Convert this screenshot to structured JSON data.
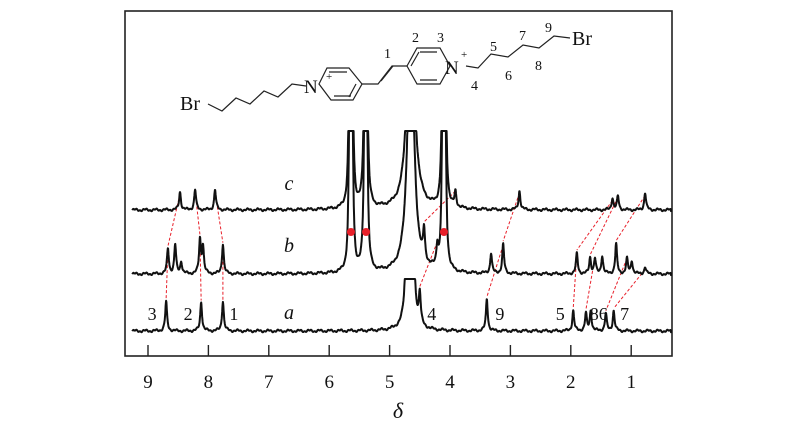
{
  "chart_data": {
    "type": "line",
    "xlabel": "δ",
    "ylabel": "",
    "xlim": [
      9.36,
      0.32
    ],
    "x_reversed": true,
    "x_ticks": [
      9,
      8,
      7,
      6,
      5,
      4,
      3,
      2,
      1
    ],
    "x_tick_labels": [
      "9",
      "8",
      "7",
      "6",
      "5",
      "4",
      "3",
      "2",
      "1"
    ],
    "grid": false,
    "series": [
      {
        "label": "c",
        "peaks": [
          {
            "delta": 8.47,
            "intensity": 0.6
          },
          {
            "delta": 8.22,
            "intensity": 0.67
          },
          {
            "delta": 7.89,
            "intensity": 0.67
          },
          {
            "delta": 5.66,
            "intensity": 6
          },
          {
            "delta": 5.62,
            "intensity": 6
          },
          {
            "delta": 5.41,
            "intensity": 6
          },
          {
            "delta": 5.38,
            "intensity": 6
          },
          {
            "delta": 4.65,
            "intensity": 9,
            "broad": true
          },
          {
            "delta": 4.12,
            "intensity": 6
          },
          {
            "delta": 4.08,
            "intensity": 6
          },
          {
            "delta": 3.91,
            "intensity": 0.5
          },
          {
            "delta": 2.85,
            "intensity": 0.63
          },
          {
            "delta": 1.31,
            "intensity": 0.4
          },
          {
            "delta": 1.22,
            "intensity": 0.45
          },
          {
            "delta": 0.77,
            "intensity": 0.57
          }
        ]
      },
      {
        "label": "b",
        "peaks": [
          {
            "delta": 8.67,
            "intensity": 0.83
          },
          {
            "delta": 8.55,
            "intensity": 0.97
          },
          {
            "delta": 8.45,
            "intensity": 0.4
          },
          {
            "delta": 8.14,
            "intensity": 1.13
          },
          {
            "delta": 8.09,
            "intensity": 0.9
          },
          {
            "delta": 7.76,
            "intensity": 1.0
          },
          {
            "delta": 5.66,
            "intensity": 6
          },
          {
            "delta": 5.62,
            "intensity": 6
          },
          {
            "delta": 5.41,
            "intensity": 6
          },
          {
            "delta": 5.38,
            "intensity": 6
          },
          {
            "delta": 4.65,
            "intensity": 9,
            "broad": true
          },
          {
            "delta": 4.43,
            "intensity": 1.0
          },
          {
            "delta": 4.21,
            "intensity": 0.67
          },
          {
            "delta": 4.12,
            "intensity": 6
          },
          {
            "delta": 4.08,
            "intensity": 6
          },
          {
            "delta": 3.32,
            "intensity": 0.67
          },
          {
            "delta": 3.12,
            "intensity": 0.97
          },
          {
            "delta": 1.9,
            "intensity": 0.67
          },
          {
            "delta": 1.68,
            "intensity": 0.53
          },
          {
            "delta": 1.6,
            "intensity": 0.5
          },
          {
            "delta": 1.48,
            "intensity": 0.6
          },
          {
            "delta": 1.25,
            "intensity": 1.0
          },
          {
            "delta": 1.07,
            "intensity": 0.5
          },
          {
            "delta": 0.99,
            "intensity": 0.43
          },
          {
            "delta": 0.77,
            "intensity": 0.23
          }
        ],
        "marked_peaks": [
          5.64,
          5.39,
          4.1
        ],
        "marker_color": "#e8202a"
      },
      {
        "label": "a",
        "peaks": [
          {
            "delta": 8.7,
            "intensity": 0.97
          },
          {
            "delta": 8.12,
            "intensity": 0.97
          },
          {
            "delta": 7.76,
            "intensity": 1.0
          },
          {
            "delta": 4.71,
            "intensity": 6
          },
          {
            "delta": 4.62,
            "intensity": 6
          },
          {
            "delta": 4.66,
            "intensity": 2,
            "broad": true
          },
          {
            "delta": 4.5,
            "intensity": 1.0
          },
          {
            "delta": 3.39,
            "intensity": 1.07
          },
          {
            "delta": 1.96,
            "intensity": 0.67
          },
          {
            "delta": 1.75,
            "intensity": 0.57
          },
          {
            "delta": 1.67,
            "intensity": 0.67
          },
          {
            "delta": 1.42,
            "intensity": 0.57
          },
          {
            "delta": 1.29,
            "intensity": 0.67
          }
        ],
        "assignments": [
          {
            "label": "3",
            "delta": 8.7
          },
          {
            "label": "2",
            "delta": 8.12
          },
          {
            "label": "1",
            "delta": 7.76
          },
          {
            "label": "4",
            "delta": 4.5
          },
          {
            "label": "9",
            "delta": 3.39
          },
          {
            "label": "5",
            "delta": 1.96
          },
          {
            "label": "86",
            "delta": 1.67
          },
          {
            "label": "7",
            "delta": 1.29
          }
        ]
      }
    ],
    "connectors_color": "#e8202a",
    "connectors_c_to_b": [
      [
        8.47,
        8.67
      ],
      [
        8.22,
        8.14
      ],
      [
        7.89,
        7.76
      ],
      [
        3.91,
        4.43
      ],
      [
        2.85,
        3.12
      ],
      [
        1.31,
        1.9
      ],
      [
        1.22,
        1.68
      ],
      [
        0.77,
        1.25
      ]
    ],
    "connectors_b_to_a": [
      [
        8.67,
        8.7
      ],
      [
        8.14,
        8.12
      ],
      [
        7.76,
        7.76
      ],
      [
        4.21,
        4.5
      ],
      [
        3.12,
        3.39
      ],
      [
        1.9,
        1.96
      ],
      [
        1.64,
        1.75
      ],
      [
        1.07,
        1.42
      ],
      [
        0.77,
        1.29
      ]
    ]
  },
  "molecule": {
    "left_br": "Br",
    "right_br": "Br",
    "n_plus": "N",
    "charge": "+",
    "numbers": [
      "1",
      "2",
      "3",
      "4",
      "5",
      "6",
      "7",
      "8",
      "9"
    ]
  }
}
